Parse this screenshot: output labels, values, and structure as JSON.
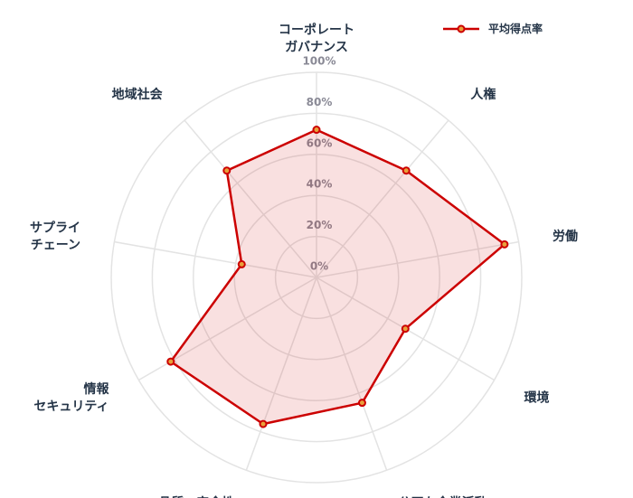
{
  "chart_data": {
    "type": "radar",
    "categories": [
      [
        "コーポレート",
        "ガバナンス"
      ],
      [
        "人権"
      ],
      [
        "労働"
      ],
      [
        "環境"
      ],
      [
        "公正な企業活動"
      ],
      [
        "品質・安全性"
      ],
      [
        "情報",
        "セキュリティ"
      ],
      [
        "サプライ",
        "チェーン"
      ],
      [
        "地域社会"
      ]
    ],
    "series": [
      {
        "name": "平均得点率",
        "values": [
          72,
          68,
          93,
          50,
          65,
          76,
          82,
          37,
          68
        ]
      }
    ],
    "rlim": [
      0,
      100
    ],
    "ticks": [
      "0%",
      "20%",
      "40%",
      "60%",
      "80%",
      "100%"
    ],
    "legend_position": "top-right",
    "colors": {
      "line": "#cc0000",
      "fill": "rgba(204,0,0,0.12)",
      "grid": "#e3e3e3",
      "marker_fill": "#e8a03a"
    }
  }
}
